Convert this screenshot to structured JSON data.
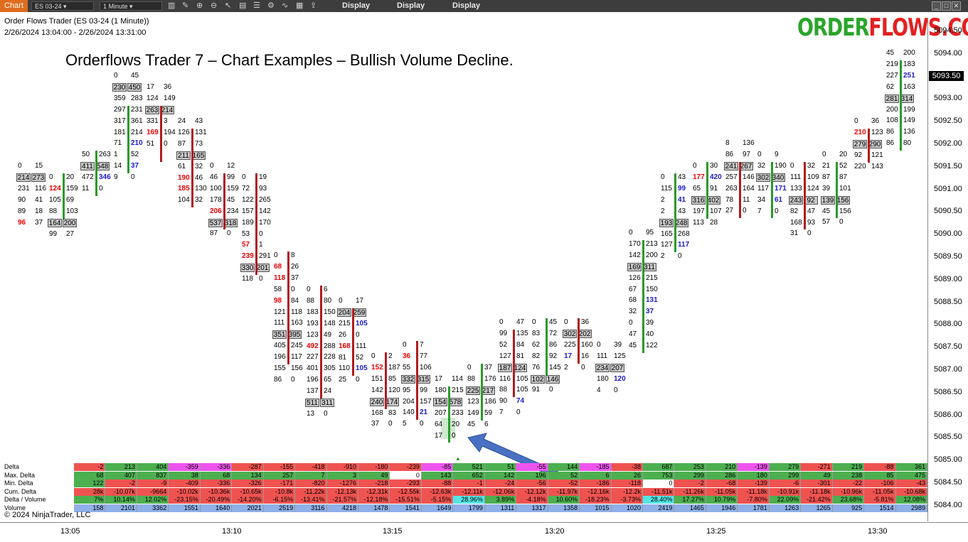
{
  "toolbar": {
    "chart_tab": "Chart",
    "instrument": "ES 03-24",
    "interval": "1 Minute",
    "display_labels": [
      "Display",
      "Display",
      "Display"
    ]
  },
  "header": {
    "title": "Order Flows Trader (ES 03-24 (1 Minute))",
    "range": "2/26/2024 13:04:00 - 2/26/2024 13:31:00"
  },
  "overlay": {
    "title": "Orderflows Trader 7 – Chart Examples – Bullish Volume Decline.",
    "logo_part1": "ORDER",
    "logo_part2": "FLOWS.COM"
  },
  "price_axis": {
    "ticks": [
      "5094.50",
      "5094.00",
      "5093.50",
      "5093.00",
      "5092.50",
      "5092.00",
      "5091.50",
      "5091.00",
      "5090.50",
      "5090.00",
      "5089.50",
      "5089.00",
      "5088.50",
      "5088.00",
      "5087.50",
      "5087.00",
      "5086.50",
      "5086.00",
      "5085.50",
      "5085.00",
      "5084.50",
      "5084.00"
    ],
    "current": "5093.50"
  },
  "time_axis": [
    "13:05",
    "13:10",
    "13:15",
    "13:20",
    "13:25",
    "13:30"
  ],
  "copyright": "© 2024 NinjaTrader, LLC",
  "footprint_note": "footprint cells are drawn from the script table",
  "stats": {
    "labels": [
      "Delta",
      "Max. Delta",
      "Min. Delta",
      "Cum. Delta",
      "Delta / Volume",
      "Volume"
    ],
    "columns": [
      [
        "-2",
        "68",
        "122",
        "28k",
        "7%",
        "158"
      ],
      [
        "213",
        "407",
        "-2",
        "-10.07k",
        "10.14%",
        "2101"
      ],
      [
        "404",
        "837",
        "-9",
        "-9664",
        "12.02%",
        "3362"
      ],
      [
        "-359",
        "38",
        "-409",
        "-10.02k",
        "-23.15%",
        "1551"
      ],
      [
        "-336",
        "68",
        "-336",
        "-10.36k",
        "-20.49%",
        "1640"
      ],
      [
        "-287",
        "134",
        "-326",
        "-10.65k",
        "-14.20%",
        "2021"
      ],
      [
        "-155",
        "257",
        "-171",
        "-10.8k",
        "-6.15%",
        "2519"
      ],
      [
        "-418",
        "7",
        "-820",
        "-11.22k",
        "-13.41%",
        "3116"
      ],
      [
        "-910",
        "3",
        "-1276",
        "-12.13k",
        "-21.57%",
        "4218"
      ],
      [
        "-180",
        "49",
        "-218",
        "-12.31k",
        "-12.18%",
        "1478"
      ],
      [
        "-239",
        "0",
        "-293",
        "-12.55k",
        "-15.51%",
        "1541"
      ],
      [
        "-85",
        "143",
        "-88",
        "-12.63k",
        "-5.15%",
        "1649"
      ],
      [
        "521",
        "652",
        "-1",
        "-12.11k",
        "28.96%",
        "1799"
      ],
      [
        "51",
        "142",
        "-24",
        "-12.06k",
        "3.89%",
        "1311"
      ],
      [
        "-55",
        "196",
        "-56",
        "-12.12k",
        "-4.18%",
        "1317"
      ],
      [
        "144",
        "52",
        "-52",
        "-11.97k",
        "10.60%",
        "1358"
      ],
      [
        "-185",
        "6",
        "-186",
        "-12.16k",
        "-18.23%",
        "1015"
      ],
      [
        "-38",
        "26",
        "-118",
        "-12.2k",
        "-3.73%",
        "1020"
      ],
      [
        "687",
        "753",
        "0",
        "-11.51k",
        "28.40%",
        "2419"
      ],
      [
        "253",
        "299",
        "-2",
        "-11.26k",
        "17.27%",
        "1465"
      ],
      [
        "210",
        "286",
        "-68",
        "-11.05k",
        "10.79%",
        "1946"
      ],
      [
        "-139",
        "180",
        "-139",
        "-11.18k",
        "-7.80%",
        "1781"
      ],
      [
        "279",
        "299",
        "-6",
        "-10.91k",
        "22.09%",
        "1263"
      ],
      [
        "-271",
        "49",
        "-301",
        "-11.18k",
        "-21.42%",
        "1265"
      ],
      [
        "219",
        "238",
        "-22",
        "-10.96k",
        "23.68%",
        "925"
      ],
      [
        "-88",
        "85",
        "-106",
        "-11.05k",
        "-5.81%",
        "1514"
      ],
      [
        "361",
        "475",
        "-43",
        "-10.68k",
        "12.08%",
        "2989"
      ]
    ]
  },
  "colors": {
    "bid_red": "#e00000",
    "ask_blue": "#1a1acc",
    "up_bar": "#2a9a2a",
    "down_bar": "#b01c1c",
    "positive": "#4caf50",
    "negative": "#ef5350",
    "magenta": "#ee55ee",
    "cyan": "#55e5e5"
  }
}
